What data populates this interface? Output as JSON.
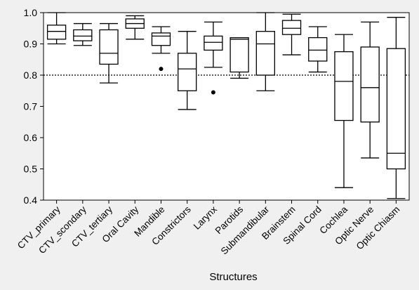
{
  "chart_data": {
    "type": "box",
    "title": "",
    "xlabel": "Structures",
    "ylabel": "",
    "ylim": [
      0.4,
      1.0
    ],
    "yticks": [
      0.4,
      0.5,
      0.6,
      0.7,
      0.8,
      0.9,
      1.0
    ],
    "ytick_labels": [
      "0.4",
      "0.5",
      "0.6",
      "0.7",
      "0.8",
      "0.9",
      "1.0"
    ],
    "reference_line": {
      "y": 0.8,
      "style": "dotted"
    },
    "grid": false,
    "categories": [
      "CTV_primary",
      "CTV_scondary",
      "CTV_tertiary",
      "Oral Cavity",
      "Mandible",
      "Constrictors",
      "Larynx",
      "Parotids",
      "Submandibular",
      "Brainstem",
      "Spinal Cord",
      "Cochlea",
      "Optic Nerve",
      "Optic Chiasm"
    ],
    "boxes": [
      {
        "whisker_low": 0.9,
        "q1": 0.915,
        "median": 0.94,
        "q3": 0.96,
        "whisker_high": 1.0,
        "outliers": []
      },
      {
        "whisker_low": 0.895,
        "q1": 0.91,
        "median": 0.925,
        "q3": 0.945,
        "whisker_high": 0.965,
        "outliers": []
      },
      {
        "whisker_low": 0.775,
        "q1": 0.835,
        "median": 0.87,
        "q3": 0.945,
        "whisker_high": 0.965,
        "outliers": []
      },
      {
        "whisker_low": 0.915,
        "q1": 0.95,
        "median": 0.965,
        "q3": 0.98,
        "whisker_high": 0.99,
        "outliers": []
      },
      {
        "whisker_low": 0.87,
        "q1": 0.895,
        "median": 0.925,
        "q3": 0.935,
        "whisker_high": 0.955,
        "outliers": [
          0.82
        ]
      },
      {
        "whisker_low": 0.69,
        "q1": 0.75,
        "median": 0.82,
        "q3": 0.87,
        "whisker_high": 0.94,
        "outliers": []
      },
      {
        "whisker_low": 0.825,
        "q1": 0.88,
        "median": 0.905,
        "q3": 0.925,
        "whisker_high": 0.97,
        "outliers": [
          0.745
        ]
      },
      {
        "whisker_low": 0.79,
        "q1": 0.81,
        "median": 0.915,
        "q3": 0.92,
        "whisker_high": 0.92,
        "outliers": []
      },
      {
        "whisker_low": 0.75,
        "q1": 0.8,
        "median": 0.9,
        "q3": 0.94,
        "whisker_high": 1.0,
        "outliers": []
      },
      {
        "whisker_low": 0.865,
        "q1": 0.93,
        "median": 0.95,
        "q3": 0.975,
        "whisker_high": 0.995,
        "outliers": []
      },
      {
        "whisker_low": 0.81,
        "q1": 0.845,
        "median": 0.88,
        "q3": 0.92,
        "whisker_high": 0.955,
        "outliers": []
      },
      {
        "whisker_low": 0.44,
        "q1": 0.655,
        "median": 0.78,
        "q3": 0.875,
        "whisker_high": 0.93,
        "outliers": []
      },
      {
        "whisker_low": 0.535,
        "q1": 0.65,
        "median": 0.76,
        "q3": 0.89,
        "whisker_high": 0.97,
        "outliers": []
      },
      {
        "whisker_low": 0.405,
        "q1": 0.5,
        "median": 0.55,
        "q3": 0.885,
        "whisker_high": 0.985,
        "outliers": []
      }
    ],
    "colors": {
      "box_stroke": "#000000",
      "box_fill": "#ffffff",
      "plot_background": "#ffffff",
      "page_background": "#f0f0f0"
    }
  }
}
